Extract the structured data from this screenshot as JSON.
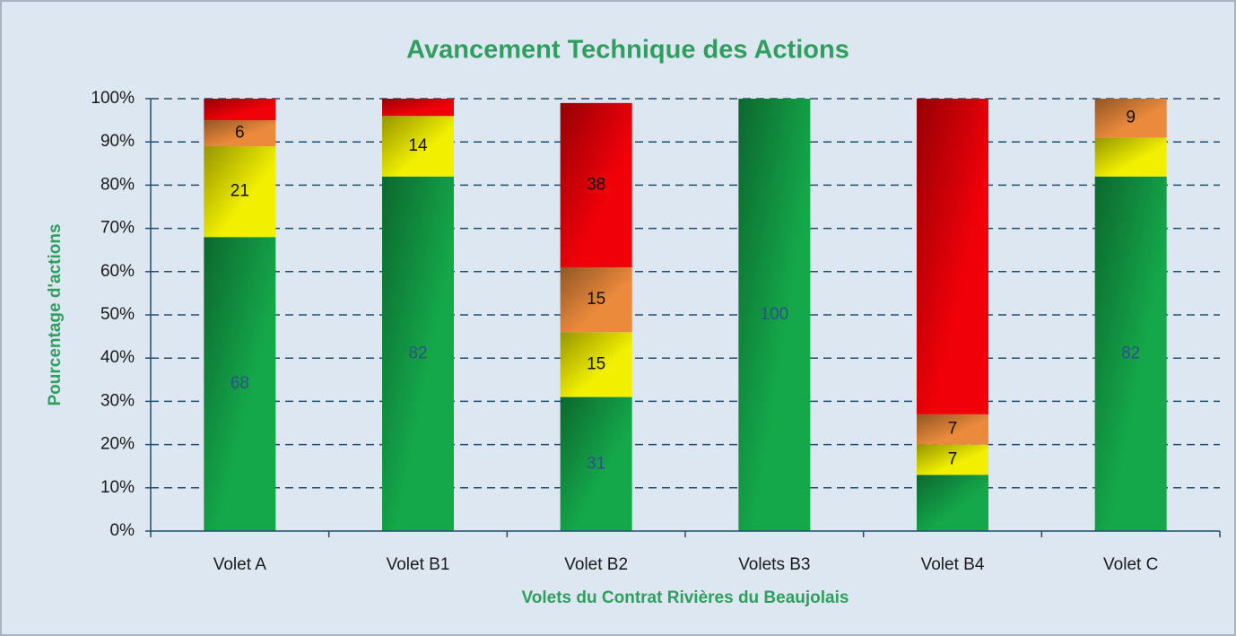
{
  "chart_data": {
    "type": "stacked_bar",
    "title": "Avancement Technique des Actions",
    "xlabel": "Volets du Contrat Rivières du Beaujolais",
    "ylabel": "Pourcentage d'actions",
    "title_color": "#2f9e5e",
    "categories": [
      "Volet A",
      "Volet B1",
      "Volet B2",
      "Volets B3",
      "Volet B4",
      "Volet C"
    ],
    "series": [
      {
        "color": "#14a84a",
        "label_color": "#2f4f8f",
        "values": [
          68,
          82,
          31,
          100,
          13,
          82
        ],
        "value_labels": [
          "68",
          "82",
          "31",
          "100",
          null,
          "82"
        ]
      },
      {
        "color": "#f2f000",
        "label_color": "#111111",
        "values": [
          21,
          14,
          15,
          0,
          7,
          9
        ],
        "value_labels": [
          "21",
          "14",
          "15",
          null,
          "7",
          null
        ]
      },
      {
        "color": "#ec8a3c",
        "label_color": "#111111",
        "values": [
          6,
          0,
          15,
          0,
          7,
          9
        ],
        "value_labels": [
          "6",
          null,
          "15",
          null,
          "7",
          "9"
        ]
      },
      {
        "color": "#f00008",
        "label_color": "#111111",
        "values": [
          5,
          4,
          38,
          0,
          73,
          0
        ],
        "value_labels": [
          null,
          null,
          "38",
          null,
          null,
          null
        ]
      }
    ],
    "ylim": [
      0,
      100
    ],
    "yticks": [
      {
        "value": 0,
        "label": "0%"
      },
      {
        "value": 10,
        "label": "10%"
      },
      {
        "value": 20,
        "label": "20%"
      },
      {
        "value": 30,
        "label": "30%"
      },
      {
        "value": 40,
        "label": "40%"
      },
      {
        "value": 50,
        "label": "50%"
      },
      {
        "value": 60,
        "label": "60%"
      },
      {
        "value": 70,
        "label": "70%"
      },
      {
        "value": 80,
        "label": "80%"
      },
      {
        "value": 90,
        "label": "90%"
      },
      {
        "value": 100,
        "label": "100%"
      }
    ],
    "grid": true
  }
}
